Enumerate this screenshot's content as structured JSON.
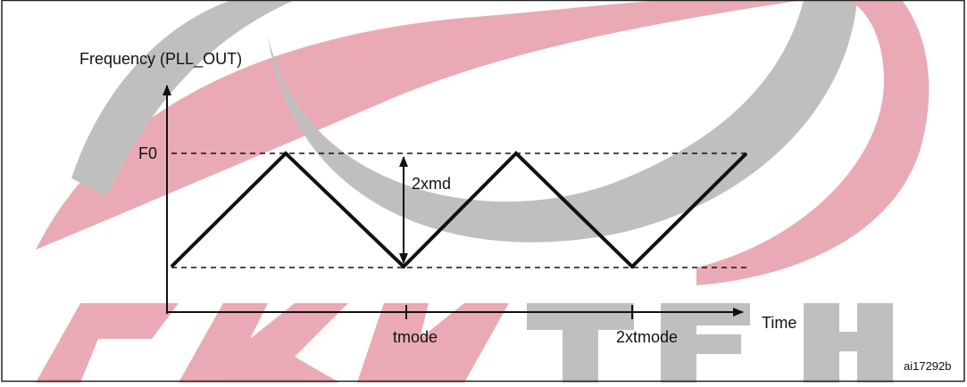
{
  "diagram": {
    "y_axis_label": "Frequency (PLL_OUT)",
    "top_level_label": "F0",
    "amplitude_label": "2xmd",
    "tick_labels": [
      "tmode",
      "2xtmode"
    ],
    "x_axis_label": "Time",
    "figure_id": "ai17292b"
  }
}
